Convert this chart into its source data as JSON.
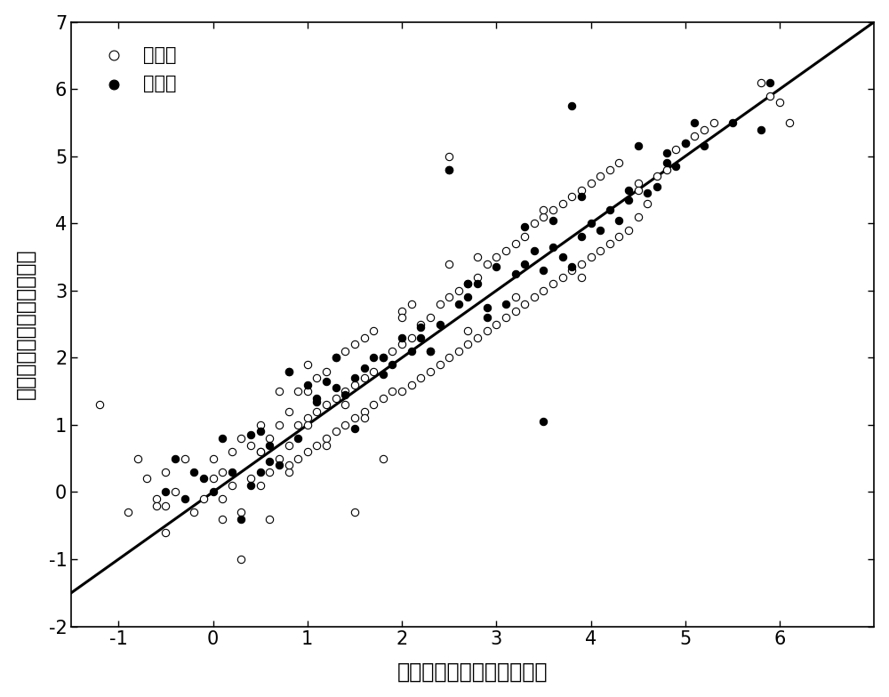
{
  "xlim": [
    -1.5,
    7
  ],
  "ylim": [
    -2,
    7
  ],
  "xticks": [
    -1,
    0,
    1,
    2,
    3,
    4,
    5,
    6
  ],
  "yticks": [
    -2,
    -1,
    0,
    1,
    2,
    3,
    4,
    5,
    6,
    7
  ],
  "xlabel": "生物富集因子对数的实验值",
  "ylabel": "生物富集因子对数的预测值",
  "legend_train": "训练集",
  "legend_val": "验证集",
  "line_color": "black",
  "line_width": 2.2,
  "train_color": "white",
  "train_edgecolor": "black",
  "val_color": "black",
  "val_edgecolor": "black",
  "marker_size": 36,
  "seed": 42,
  "font_size": 15,
  "label_font_size": 17,
  "background": "white",
  "train_x": [
    -1.2,
    -0.9,
    -0.8,
    -0.7,
    -0.6,
    -0.5,
    -0.5,
    -0.4,
    -0.3,
    -0.2,
    -0.1,
    0.0,
    0.0,
    0.1,
    0.1,
    0.2,
    0.2,
    0.3,
    0.3,
    0.4,
    0.4,
    0.5,
    0.5,
    0.5,
    0.6,
    0.6,
    0.7,
    0.7,
    0.7,
    0.8,
    0.8,
    0.8,
    0.9,
    0.9,
    0.9,
    1.0,
    1.0,
    1.0,
    1.0,
    1.1,
    1.1,
    1.1,
    1.2,
    1.2,
    1.2,
    1.3,
    1.3,
    1.3,
    1.4,
    1.4,
    1.4,
    1.5,
    1.5,
    1.5,
    1.6,
    1.6,
    1.6,
    1.7,
    1.7,
    1.7,
    1.8,
    1.8,
    1.9,
    1.9,
    2.0,
    2.0,
    2.0,
    2.1,
    2.1,
    2.1,
    2.2,
    2.2,
    2.3,
    2.3,
    2.4,
    2.4,
    2.5,
    2.5,
    2.5,
    2.6,
    2.6,
    2.7,
    2.7,
    2.8,
    2.8,
    2.9,
    2.9,
    3.0,
    3.0,
    3.1,
    3.1,
    3.2,
    3.2,
    3.3,
    3.3,
    3.4,
    3.4,
    3.5,
    3.5,
    3.6,
    3.6,
    3.7,
    3.7,
    3.8,
    3.8,
    3.9,
    3.9,
    4.0,
    4.0,
    4.1,
    4.1,
    4.2,
    4.2,
    4.3,
    4.3,
    4.4,
    4.5,
    4.5,
    4.6,
    4.7,
    4.8,
    4.9,
    5.0,
    5.1,
    5.2,
    5.3,
    5.8,
    5.9,
    6.0,
    6.1,
    1.8,
    2.5,
    0.6,
    0.3,
    1.5,
    -0.6,
    -0.5,
    0.1,
    0.8,
    1.2,
    1.6,
    2.0,
    2.3,
    2.7,
    3.2,
    1.0,
    1.4,
    0.5,
    3.5,
    2.8,
    4.5,
    3.9
  ],
  "train_y": [
    1.3,
    -0.3,
    0.5,
    0.2,
    -0.1,
    0.3,
    -0.2,
    0.0,
    0.5,
    -0.3,
    -0.1,
    0.2,
    0.5,
    0.3,
    -0.4,
    0.1,
    0.6,
    -0.3,
    0.8,
    0.2,
    0.7,
    0.1,
    0.6,
    1.0,
    0.3,
    0.8,
    0.5,
    1.0,
    1.5,
    0.3,
    0.7,
    1.2,
    0.5,
    1.0,
    1.5,
    0.6,
    1.1,
    1.5,
    1.9,
    0.7,
    1.2,
    1.7,
    0.8,
    1.3,
    1.8,
    0.9,
    1.4,
    2.0,
    1.0,
    1.5,
    2.1,
    1.1,
    1.6,
    2.2,
    1.2,
    1.7,
    2.3,
    1.3,
    1.8,
    2.4,
    1.4,
    2.0,
    1.5,
    2.1,
    1.5,
    2.2,
    2.7,
    1.6,
    2.3,
    2.8,
    1.7,
    2.5,
    1.8,
    2.6,
    1.9,
    2.8,
    2.0,
    2.9,
    3.4,
    2.1,
    3.0,
    2.2,
    3.1,
    2.3,
    3.2,
    2.4,
    3.4,
    2.5,
    3.5,
    2.6,
    3.6,
    2.7,
    3.7,
    2.8,
    3.8,
    2.9,
    4.0,
    3.0,
    4.1,
    3.1,
    4.2,
    3.2,
    4.3,
    3.3,
    4.4,
    3.4,
    4.5,
    3.5,
    4.6,
    3.6,
    4.7,
    3.7,
    4.8,
    3.8,
    4.9,
    3.9,
    4.1,
    4.6,
    4.3,
    4.7,
    4.8,
    5.1,
    5.2,
    5.3,
    5.4,
    5.5,
    6.1,
    5.9,
    5.8,
    5.5,
    0.5,
    5.0,
    -0.4,
    -1.0,
    -0.3,
    -0.2,
    -0.6,
    -0.1,
    0.4,
    0.7,
    1.1,
    2.6,
    2.1,
    2.4,
    2.9,
    1.0,
    1.3,
    0.6,
    4.2,
    3.5,
    4.5,
    3.2
  ],
  "val_x": [
    -0.5,
    -0.4,
    -0.3,
    -0.2,
    -0.1,
    0.0,
    0.1,
    0.2,
    0.3,
    0.4,
    0.5,
    0.5,
    0.6,
    0.7,
    0.8,
    0.9,
    1.0,
    1.1,
    1.2,
    1.3,
    1.4,
    1.5,
    1.6,
    1.7,
    1.8,
    1.9,
    2.0,
    2.1,
    2.2,
    2.3,
    2.4,
    2.5,
    2.6,
    2.7,
    2.8,
    2.9,
    3.0,
    3.1,
    3.2,
    3.3,
    3.4,
    3.5,
    3.6,
    3.7,
    3.8,
    3.9,
    4.0,
    4.1,
    4.2,
    4.3,
    4.4,
    4.5,
    4.6,
    4.7,
    4.8,
    4.9,
    5.0,
    5.1,
    5.2,
    5.8,
    2.5,
    3.8,
    3.5,
    0.8,
    1.5,
    2.2,
    2.9,
    1.1,
    1.8,
    0.4,
    0.6,
    1.3,
    3.3,
    4.4,
    5.5,
    5.9,
    3.6,
    4.8,
    2.7,
    3.9
  ],
  "val_y": [
    0.0,
    0.5,
    -0.1,
    0.3,
    0.2,
    0.0,
    0.8,
    0.3,
    -0.4,
    0.1,
    0.3,
    0.9,
    0.7,
    0.4,
    1.8,
    0.8,
    1.6,
    1.4,
    1.65,
    2.0,
    1.45,
    1.7,
    1.85,
    2.0,
    1.75,
    1.9,
    2.3,
    2.1,
    2.45,
    2.1,
    2.5,
    4.8,
    2.8,
    2.9,
    3.1,
    2.6,
    3.35,
    2.8,
    3.25,
    3.4,
    3.6,
    3.3,
    3.65,
    3.5,
    3.35,
    3.8,
    4.0,
    3.9,
    4.2,
    4.05,
    4.35,
    5.15,
    4.45,
    4.55,
    5.05,
    4.85,
    5.2,
    5.5,
    5.15,
    5.4,
    4.8,
    5.75,
    1.05,
    1.8,
    0.95,
    2.3,
    2.75,
    1.35,
    2.0,
    0.85,
    0.45,
    1.55,
    3.95,
    4.5,
    5.5,
    6.1,
    4.05,
    4.9,
    3.1,
    4.4
  ]
}
